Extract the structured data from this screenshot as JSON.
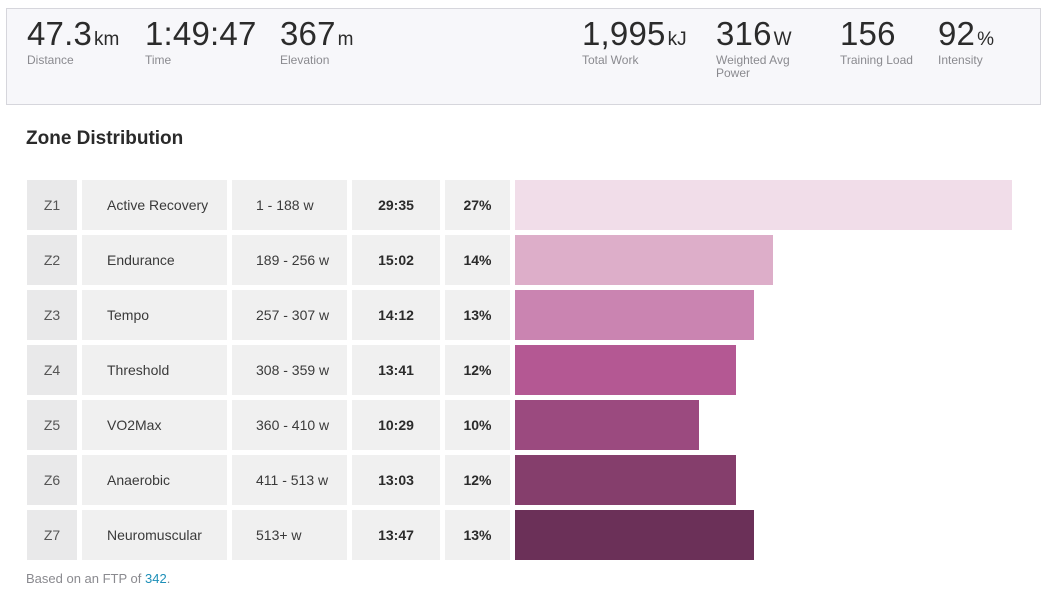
{
  "stats_left": [
    {
      "value": "47.3",
      "unit": "km",
      "label": "Distance"
    },
    {
      "value": "1:49:47",
      "unit": "",
      "label": "Time"
    },
    {
      "value": "367",
      "unit": "m",
      "label": "Elevation"
    }
  ],
  "stats_right": [
    {
      "value": "1,995",
      "unit": "kJ",
      "label": "Total Work"
    },
    {
      "value": "316",
      "unit": "W",
      "label": "Weighted Avg\nPower"
    },
    {
      "value": "156",
      "unit": "",
      "label": "Training Load"
    },
    {
      "value": "92",
      "unit": "%",
      "label": "Intensity"
    }
  ],
  "zone_section": {
    "title": "Zone Distribution",
    "ftp_prefix": "Based on an FTP of ",
    "ftp_value": "342",
    "ftp_suffix": "."
  },
  "chart_data": {
    "type": "bar",
    "categories": [
      "Z1",
      "Z2",
      "Z3",
      "Z4",
      "Z5",
      "Z6",
      "Z7"
    ],
    "zones": [
      {
        "code": "Z1",
        "name": "Active Recovery",
        "range": "1 - 188 w",
        "time": "29:35",
        "percent_label": "27%",
        "percent": 27,
        "color": "#f1dde9"
      },
      {
        "code": "Z2",
        "name": "Endurance",
        "range": "189 - 256 w",
        "time": "15:02",
        "percent_label": "14%",
        "percent": 14,
        "color": "#ddaec9"
      },
      {
        "code": "Z3",
        "name": "Tempo",
        "range": "257 - 307 w",
        "time": "14:12",
        "percent_label": "13%",
        "percent": 13,
        "color": "#ca84b1"
      },
      {
        "code": "Z4",
        "name": "Threshold",
        "range": "308 - 359 w",
        "time": "13:41",
        "percent_label": "12%",
        "percent": 12,
        "color": "#b45893"
      },
      {
        "code": "Z5",
        "name": "VO2Max",
        "range": "360 - 410 w",
        "time": "10:29",
        "percent_label": "10%",
        "percent": 10,
        "color": "#9b4a7f"
      },
      {
        "code": "Z6",
        "name": "Anaerobic",
        "range": "411 - 513 w",
        "time": "13:03",
        "percent_label": "12%",
        "percent": 12,
        "color": "#853e6c"
      },
      {
        "code": "Z7",
        "name": "Neuromuscular",
        "range": "513+ w",
        "time": "13:47",
        "percent_label": "13%",
        "percent": 13,
        "color": "#6b3058"
      }
    ],
    "max_percent": 27
  }
}
